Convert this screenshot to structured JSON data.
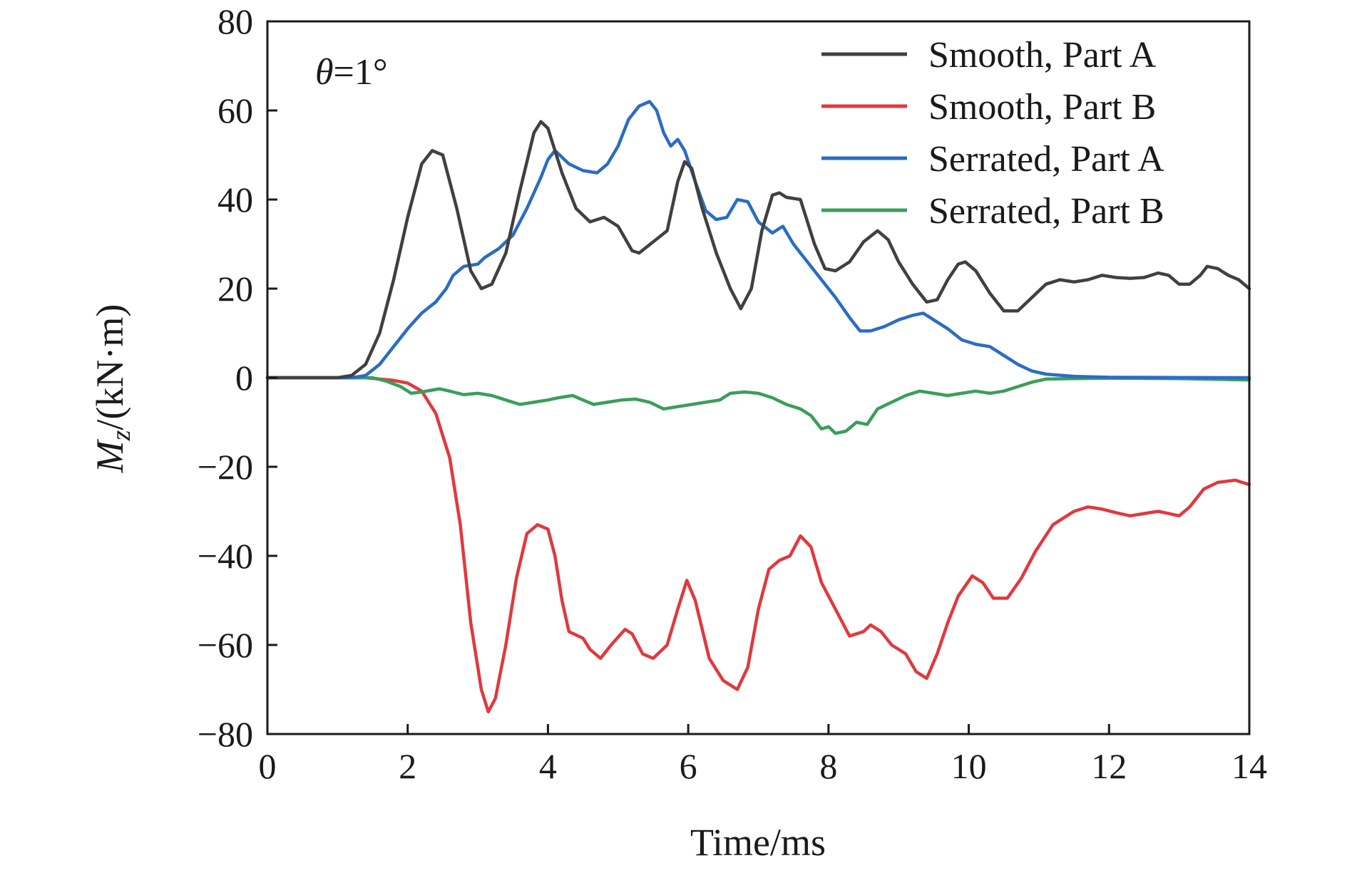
{
  "chart_data": {
    "type": "line",
    "title": "",
    "xlabel": "Time/ms",
    "ylabel_main": "M",
    "ylabel_sub": "z",
    "ylabel_unit": "/(kN·m)",
    "xlim": [
      0,
      14
    ],
    "ylim": [
      -80,
      80
    ],
    "x_ticks": [
      0,
      2,
      4,
      6,
      8,
      10,
      12,
      14
    ],
    "y_ticks": [
      -80,
      -60,
      -40,
      -20,
      0,
      20,
      40,
      60,
      80
    ],
    "x_tick_labels": [
      "0",
      "2",
      "4",
      "6",
      "8",
      "10",
      "12",
      "14"
    ],
    "y_tick_labels": [
      "−80",
      "−60",
      "−40",
      "−20",
      "0",
      "20",
      "40",
      "60",
      "80"
    ],
    "grid": false,
    "legend_position": "top-right",
    "annotation": {
      "symbol": "θ",
      "text": "=1°"
    },
    "series": [
      {
        "name": "Smooth, Part A",
        "color": "#404040",
        "points": [
          [
            0,
            0
          ],
          [
            1,
            0
          ],
          [
            1.2,
            0.5
          ],
          [
            1.4,
            3
          ],
          [
            1.6,
            10
          ],
          [
            1.8,
            22
          ],
          [
            2.0,
            36
          ],
          [
            2.2,
            48
          ],
          [
            2.35,
            51
          ],
          [
            2.5,
            50
          ],
          [
            2.7,
            38
          ],
          [
            2.9,
            24
          ],
          [
            3.05,
            20
          ],
          [
            3.2,
            21
          ],
          [
            3.4,
            28
          ],
          [
            3.6,
            42
          ],
          [
            3.8,
            55
          ],
          [
            3.9,
            57.5
          ],
          [
            4.0,
            56
          ],
          [
            4.2,
            46
          ],
          [
            4.4,
            38
          ],
          [
            4.6,
            35
          ],
          [
            4.8,
            36
          ],
          [
            5.0,
            34
          ],
          [
            5.2,
            28.5
          ],
          [
            5.3,
            28
          ],
          [
            5.5,
            30.5
          ],
          [
            5.7,
            33
          ],
          [
            5.85,
            44
          ],
          [
            5.95,
            48.5
          ],
          [
            6.05,
            47
          ],
          [
            6.2,
            38
          ],
          [
            6.4,
            28
          ],
          [
            6.6,
            20
          ],
          [
            6.75,
            15.5
          ],
          [
            6.9,
            20
          ],
          [
            7.05,
            33
          ],
          [
            7.2,
            41
          ],
          [
            7.3,
            41.5
          ],
          [
            7.4,
            40.5
          ],
          [
            7.6,
            40
          ],
          [
            7.8,
            30
          ],
          [
            7.95,
            24.5
          ],
          [
            8.1,
            24
          ],
          [
            8.3,
            26
          ],
          [
            8.5,
            30.5
          ],
          [
            8.7,
            33
          ],
          [
            8.85,
            31
          ],
          [
            9.0,
            26
          ],
          [
            9.2,
            21
          ],
          [
            9.4,
            17
          ],
          [
            9.55,
            17.5
          ],
          [
            9.7,
            22
          ],
          [
            9.85,
            25.5
          ],
          [
            9.95,
            26
          ],
          [
            10.1,
            24
          ],
          [
            10.3,
            19
          ],
          [
            10.5,
            15
          ],
          [
            10.7,
            15
          ],
          [
            10.9,
            18
          ],
          [
            11.1,
            21
          ],
          [
            11.3,
            22
          ],
          [
            11.5,
            21.5
          ],
          [
            11.7,
            22
          ],
          [
            11.9,
            23
          ],
          [
            12.1,
            22.5
          ],
          [
            12.3,
            22.3
          ],
          [
            12.5,
            22.5
          ],
          [
            12.7,
            23.5
          ],
          [
            12.85,
            23
          ],
          [
            13.0,
            21
          ],
          [
            13.15,
            21
          ],
          [
            13.3,
            23
          ],
          [
            13.4,
            25
          ],
          [
            13.55,
            24.5
          ],
          [
            13.7,
            23
          ],
          [
            13.85,
            22
          ],
          [
            14,
            20
          ]
        ]
      },
      {
        "name": "Smooth, Part B",
        "color": "#e0393e",
        "points": [
          [
            0,
            0
          ],
          [
            1.4,
            0
          ],
          [
            1.6,
            -0.3
          ],
          [
            1.8,
            -0.6
          ],
          [
            2.0,
            -1.2
          ],
          [
            2.2,
            -3
          ],
          [
            2.4,
            -8
          ],
          [
            2.6,
            -18
          ],
          [
            2.75,
            -33
          ],
          [
            2.9,
            -55
          ],
          [
            3.05,
            -70
          ],
          [
            3.15,
            -75
          ],
          [
            3.25,
            -72
          ],
          [
            3.4,
            -60
          ],
          [
            3.55,
            -45
          ],
          [
            3.7,
            -35
          ],
          [
            3.85,
            -33
          ],
          [
            4.0,
            -34
          ],
          [
            4.1,
            -40
          ],
          [
            4.2,
            -50
          ],
          [
            4.3,
            -57
          ],
          [
            4.5,
            -58.5
          ],
          [
            4.6,
            -61
          ],
          [
            4.75,
            -63
          ],
          [
            4.9,
            -60
          ],
          [
            5.1,
            -56.5
          ],
          [
            5.2,
            -57.5
          ],
          [
            5.35,
            -62
          ],
          [
            5.5,
            -63
          ],
          [
            5.7,
            -60
          ],
          [
            5.85,
            -52
          ],
          [
            5.98,
            -45.5
          ],
          [
            6.1,
            -50
          ],
          [
            6.3,
            -63
          ],
          [
            6.5,
            -68
          ],
          [
            6.7,
            -70
          ],
          [
            6.85,
            -65
          ],
          [
            7.0,
            -52
          ],
          [
            7.15,
            -43
          ],
          [
            7.3,
            -41
          ],
          [
            7.45,
            -40
          ],
          [
            7.6,
            -35.5
          ],
          [
            7.75,
            -38
          ],
          [
            7.9,
            -46
          ],
          [
            8.1,
            -52
          ],
          [
            8.3,
            -58
          ],
          [
            8.5,
            -57
          ],
          [
            8.6,
            -55.5
          ],
          [
            8.75,
            -57
          ],
          [
            8.9,
            -60
          ],
          [
            9.1,
            -62
          ],
          [
            9.25,
            -66
          ],
          [
            9.4,
            -67.5
          ],
          [
            9.55,
            -62
          ],
          [
            9.7,
            -55
          ],
          [
            9.85,
            -49
          ],
          [
            10.05,
            -44.5
          ],
          [
            10.2,
            -46
          ],
          [
            10.35,
            -49.5
          ],
          [
            10.55,
            -49.5
          ],
          [
            10.75,
            -45
          ],
          [
            10.95,
            -39
          ],
          [
            11.2,
            -33
          ],
          [
            11.5,
            -30
          ],
          [
            11.7,
            -29
          ],
          [
            11.9,
            -29.5
          ],
          [
            12.1,
            -30.3
          ],
          [
            12.3,
            -31
          ],
          [
            12.5,
            -30.5
          ],
          [
            12.7,
            -30
          ],
          [
            12.85,
            -30.5
          ],
          [
            13.0,
            -31
          ],
          [
            13.15,
            -29
          ],
          [
            13.35,
            -25
          ],
          [
            13.55,
            -23.5
          ],
          [
            13.8,
            -23
          ],
          [
            14,
            -24
          ]
        ]
      },
      {
        "name": "Serrated, Part A",
        "color": "#2b6cc4",
        "points": [
          [
            0,
            0
          ],
          [
            1.2,
            0
          ],
          [
            1.4,
            0.5
          ],
          [
            1.6,
            3
          ],
          [
            1.8,
            7
          ],
          [
            2.0,
            11
          ],
          [
            2.2,
            14.5
          ],
          [
            2.4,
            17
          ],
          [
            2.55,
            20
          ],
          [
            2.65,
            23
          ],
          [
            2.8,
            25
          ],
          [
            3.0,
            25.5
          ],
          [
            3.1,
            27
          ],
          [
            3.3,
            29
          ],
          [
            3.5,
            32
          ],
          [
            3.7,
            38
          ],
          [
            3.9,
            45
          ],
          [
            4.0,
            49
          ],
          [
            4.1,
            51
          ],
          [
            4.3,
            48
          ],
          [
            4.5,
            46.5
          ],
          [
            4.7,
            46
          ],
          [
            4.85,
            48
          ],
          [
            5.0,
            52
          ],
          [
            5.15,
            58
          ],
          [
            5.3,
            61
          ],
          [
            5.45,
            62
          ],
          [
            5.55,
            60
          ],
          [
            5.65,
            55
          ],
          [
            5.75,
            52
          ],
          [
            5.85,
            53.5
          ],
          [
            5.95,
            51
          ],
          [
            6.1,
            44
          ],
          [
            6.25,
            37.5
          ],
          [
            6.4,
            35.5
          ],
          [
            6.55,
            36
          ],
          [
            6.7,
            40
          ],
          [
            6.85,
            39.5
          ],
          [
            7.0,
            35
          ],
          [
            7.2,
            32.5
          ],
          [
            7.35,
            34
          ],
          [
            7.5,
            30
          ],
          [
            7.7,
            26
          ],
          [
            7.9,
            22
          ],
          [
            8.1,
            18
          ],
          [
            8.3,
            13.5
          ],
          [
            8.45,
            10.5
          ],
          [
            8.6,
            10.5
          ],
          [
            8.8,
            11.5
          ],
          [
            9.0,
            13
          ],
          [
            9.2,
            14
          ],
          [
            9.35,
            14.5
          ],
          [
            9.5,
            13
          ],
          [
            9.7,
            11
          ],
          [
            9.9,
            8.5
          ],
          [
            10.1,
            7.5
          ],
          [
            10.3,
            7
          ],
          [
            10.5,
            5
          ],
          [
            10.7,
            3
          ],
          [
            10.9,
            1.5
          ],
          [
            11.1,
            0.8
          ],
          [
            11.5,
            0.3
          ],
          [
            12,
            0.1
          ],
          [
            14,
            0
          ]
        ]
      },
      {
        "name": "Serrated, Part B",
        "color": "#3a9e5b",
        "points": [
          [
            0,
            0
          ],
          [
            1.5,
            0
          ],
          [
            1.7,
            -0.8
          ],
          [
            1.9,
            -2
          ],
          [
            2.05,
            -3.5
          ],
          [
            2.2,
            -3.2
          ],
          [
            2.45,
            -2.5
          ],
          [
            2.6,
            -3
          ],
          [
            2.8,
            -3.8
          ],
          [
            3.0,
            -3.5
          ],
          [
            3.2,
            -4
          ],
          [
            3.4,
            -5
          ],
          [
            3.6,
            -6
          ],
          [
            3.8,
            -5.5
          ],
          [
            4.0,
            -5
          ],
          [
            4.15,
            -4.5
          ],
          [
            4.35,
            -4
          ],
          [
            4.5,
            -5
          ],
          [
            4.65,
            -6
          ],
          [
            4.85,
            -5.5
          ],
          [
            5.05,
            -5
          ],
          [
            5.25,
            -4.8
          ],
          [
            5.45,
            -5.5
          ],
          [
            5.65,
            -7
          ],
          [
            5.85,
            -6.5
          ],
          [
            6.05,
            -6
          ],
          [
            6.25,
            -5.5
          ],
          [
            6.45,
            -5
          ],
          [
            6.6,
            -3.5
          ],
          [
            6.8,
            -3.2
          ],
          [
            7.0,
            -3.5
          ],
          [
            7.2,
            -4.5
          ],
          [
            7.4,
            -6
          ],
          [
            7.6,
            -7
          ],
          [
            7.75,
            -8.5
          ],
          [
            7.9,
            -11.5
          ],
          [
            8.0,
            -11
          ],
          [
            8.1,
            -12.5
          ],
          [
            8.25,
            -12
          ],
          [
            8.4,
            -10
          ],
          [
            8.55,
            -10.5
          ],
          [
            8.7,
            -7
          ],
          [
            8.9,
            -5.5
          ],
          [
            9.1,
            -4
          ],
          [
            9.3,
            -3
          ],
          [
            9.5,
            -3.5
          ],
          [
            9.7,
            -4
          ],
          [
            9.9,
            -3.5
          ],
          [
            10.1,
            -3
          ],
          [
            10.3,
            -3.5
          ],
          [
            10.5,
            -3
          ],
          [
            10.7,
            -2
          ],
          [
            10.9,
            -1
          ],
          [
            11.1,
            -0.3
          ],
          [
            11.5,
            -0.2
          ],
          [
            12,
            -0.1
          ],
          [
            13,
            -0.2
          ],
          [
            14,
            -0.5
          ]
        ]
      }
    ]
  }
}
